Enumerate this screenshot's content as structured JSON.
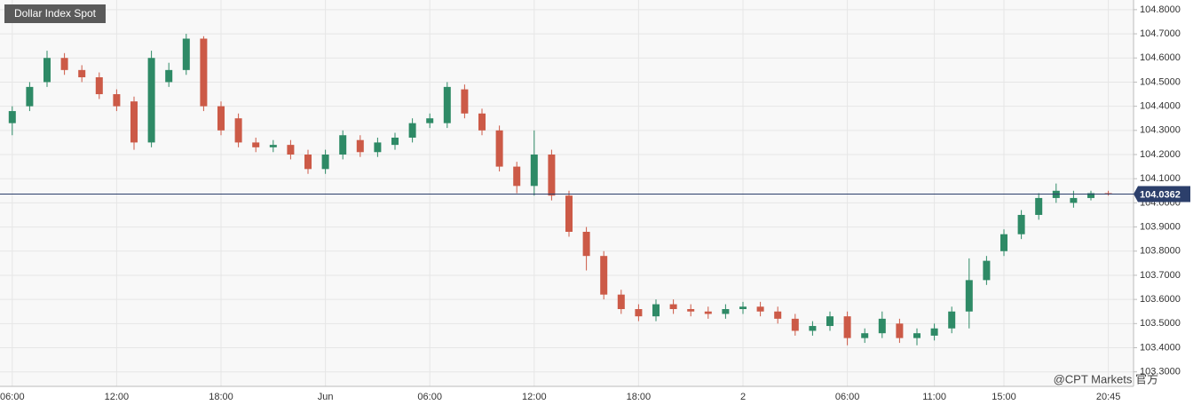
{
  "chart_data": {
    "type": "candlestick",
    "title": "Dollar Index Spot",
    "categories": [
      "06:00",
      null,
      null,
      null,
      null,
      null,
      "12:00",
      null,
      null,
      null,
      null,
      null,
      "18:00",
      null,
      null,
      null,
      null,
      null,
      "Jun",
      null,
      null,
      null,
      null,
      null,
      "06:00",
      null,
      null,
      null,
      null,
      null,
      "12:00",
      null,
      null,
      null,
      null,
      null,
      "18:00",
      null,
      null,
      null,
      null,
      null,
      "2",
      null,
      null,
      null,
      null,
      null,
      "06:00",
      null,
      null,
      null,
      null,
      "11:00",
      null,
      null,
      null,
      "15:00",
      null,
      null,
      null,
      null,
      null,
      "20:45"
    ],
    "open": [
      104.33,
      104.4,
      104.5,
      104.6,
      104.55,
      104.52,
      104.45,
      104.42,
      104.25,
      104.5,
      104.55,
      104.68,
      104.4,
      104.35,
      104.25,
      104.23,
      104.24,
      104.2,
      104.14,
      104.2,
      104.26,
      104.21,
      104.24,
      104.27,
      104.33,
      104.33,
      104.47,
      104.37,
      104.3,
      104.15,
      104.07,
      104.2,
      104.03,
      103.88,
      103.78,
      103.62,
      103.56,
      103.53,
      103.58,
      103.56,
      103.55,
      103.54,
      103.56,
      103.57,
      103.55,
      103.52,
      103.47,
      103.49,
      103.53,
      103.44,
      103.46,
      103.5,
      103.44,
      103.45,
      103.48,
      103.55,
      103.68,
      103.8,
      103.87,
      103.95,
      104.02,
      104.0,
      104.02,
      104.04
    ],
    "high": [
      104.4,
      104.5,
      104.63,
      104.62,
      104.57,
      104.54,
      104.47,
      104.44,
      104.63,
      104.58,
      104.7,
      104.69,
      104.42,
      104.37,
      104.27,
      104.26,
      104.26,
      104.22,
      104.22,
      104.3,
      104.28,
      104.27,
      104.29,
      104.35,
      104.37,
      104.5,
      104.49,
      104.39,
      104.32,
      104.17,
      104.3,
      104.22,
      104.05,
      103.9,
      103.8,
      103.64,
      103.58,
      103.6,
      103.6,
      103.58,
      103.57,
      103.58,
      103.59,
      103.59,
      103.57,
      103.54,
      103.51,
      103.55,
      103.55,
      103.48,
      103.55,
      103.52,
      103.48,
      103.5,
      103.57,
      103.77,
      103.78,
      103.89,
      103.97,
      104.04,
      104.08,
      104.05,
      104.05,
      104.05
    ],
    "low": [
      104.28,
      104.38,
      104.48,
      104.53,
      104.5,
      104.43,
      104.38,
      104.22,
      104.23,
      104.48,
      104.53,
      104.38,
      104.28,
      104.23,
      104.21,
      104.21,
      104.18,
      104.12,
      104.12,
      104.18,
      104.19,
      104.19,
      104.22,
      104.25,
      104.31,
      104.31,
      104.35,
      104.28,
      104.13,
      104.04,
      104.03,
      104.01,
      103.86,
      103.72,
      103.6,
      103.54,
      103.51,
      103.51,
      103.54,
      103.53,
      103.52,
      103.52,
      103.54,
      103.53,
      103.5,
      103.45,
      103.45,
      103.47,
      103.41,
      103.42,
      103.44,
      103.42,
      103.41,
      103.43,
      103.46,
      103.48,
      103.66,
      103.78,
      103.85,
      103.93,
      104.0,
      103.98,
      104.01,
      104.03
    ],
    "close": [
      104.38,
      104.48,
      104.6,
      104.55,
      104.52,
      104.45,
      104.4,
      104.25,
      104.6,
      104.55,
      104.68,
      104.4,
      104.3,
      104.25,
      104.23,
      104.24,
      104.2,
      104.14,
      104.2,
      104.28,
      104.21,
      104.25,
      104.27,
      104.33,
      104.35,
      104.48,
      104.37,
      104.3,
      104.15,
      104.07,
      104.2,
      104.03,
      103.88,
      103.78,
      103.62,
      103.56,
      103.53,
      103.58,
      103.56,
      103.55,
      103.54,
      103.56,
      103.57,
      103.55,
      103.52,
      103.47,
      103.49,
      103.53,
      103.44,
      103.46,
      103.52,
      103.44,
      103.46,
      103.48,
      103.55,
      103.68,
      103.76,
      103.87,
      103.95,
      104.02,
      104.05,
      104.02,
      104.04,
      104.036
    ],
    "up_color": "#2e8a66",
    "down_color": "#cc5a47",
    "ylim": [
      103.24,
      104.84
    ],
    "yticks": [
      {
        "value": 103.3,
        "label": "103.3000"
      },
      {
        "value": 103.4,
        "label": "103.4000"
      },
      {
        "value": 103.5,
        "label": "103.5000"
      },
      {
        "value": 103.6,
        "label": "103.6000"
      },
      {
        "value": 103.7,
        "label": "103.7000"
      },
      {
        "value": 103.8,
        "label": "103.8000"
      },
      {
        "value": 103.9,
        "label": "103.9000"
      },
      {
        "value": 104.0,
        "label": "104.0000"
      },
      {
        "value": 104.1,
        "label": "104.1000"
      },
      {
        "value": 104.2,
        "label": "104.2000"
      },
      {
        "value": 104.3,
        "label": "104.3000"
      },
      {
        "value": 104.4,
        "label": "104.4000"
      },
      {
        "value": 104.5,
        "label": "104.5000"
      },
      {
        "value": 104.6,
        "label": "104.6000"
      },
      {
        "value": 104.7,
        "label": "104.7000"
      },
      {
        "value": 104.8,
        "label": "104.8000"
      }
    ],
    "grid": true,
    "last_price": 104.0362,
    "last_price_color": "#2c3f6b",
    "watermark": "@CPT Markets 官方"
  }
}
